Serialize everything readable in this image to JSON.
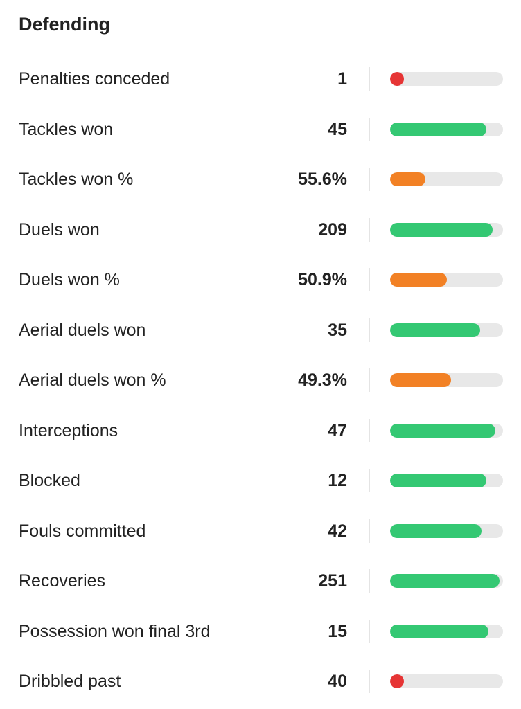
{
  "section": {
    "title": "Defending"
  },
  "colors": {
    "green": "#34c873",
    "orange": "#f28125",
    "red": "#e63535",
    "track": "#e8e8e8"
  },
  "stats": [
    {
      "label": "Penalties conceded",
      "value": "1",
      "level": 0.12,
      "color": "red"
    },
    {
      "label": "Tackles won",
      "value": "45",
      "level": 0.85,
      "color": "green"
    },
    {
      "label": "Tackles won %",
      "value": "55.6%",
      "level": 0.31,
      "color": "orange"
    },
    {
      "label": "Duels won",
      "value": "209",
      "level": 0.91,
      "color": "green"
    },
    {
      "label": "Duels won %",
      "value": "50.9%",
      "level": 0.5,
      "color": "orange"
    },
    {
      "label": "Aerial duels won",
      "value": "35",
      "level": 0.8,
      "color": "green"
    },
    {
      "label": "Aerial duels won %",
      "value": "49.3%",
      "level": 0.54,
      "color": "orange"
    },
    {
      "label": "Interceptions",
      "value": "47",
      "level": 0.93,
      "color": "green"
    },
    {
      "label": "Blocked",
      "value": "12",
      "level": 0.85,
      "color": "green"
    },
    {
      "label": "Fouls committed",
      "value": "42",
      "level": 0.81,
      "color": "green"
    },
    {
      "label": "Recoveries",
      "value": "251",
      "level": 0.97,
      "color": "green"
    },
    {
      "label": "Possession won final 3rd",
      "value": "15",
      "level": 0.87,
      "color": "green"
    },
    {
      "label": "Dribbled past",
      "value": "40",
      "level": 0.12,
      "color": "red"
    }
  ]
}
